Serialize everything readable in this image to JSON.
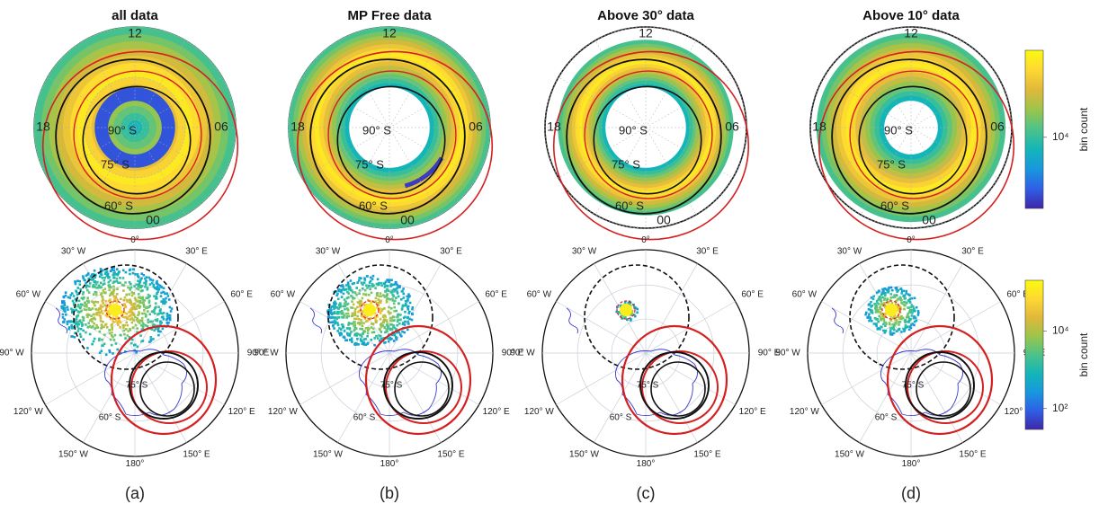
{
  "figure": {
    "panel_letters": [
      "(a)",
      "(b)",
      "(c)",
      "(d)"
    ]
  },
  "chart_data": [
    {
      "type": "heatmap",
      "projection": "polar-mlt",
      "title": "all data",
      "hour_labels": [
        "12",
        "06",
        "00",
        "18"
      ],
      "lat_labels": [
        "90° S",
        "75° S",
        "60° S"
      ],
      "band_lat": [
        60,
        90
      ],
      "inner_blue_ring": true
    },
    {
      "type": "heatmap",
      "projection": "polar-mlt",
      "title": "MP Free data",
      "hour_labels": [
        "12",
        "06",
        "00",
        "18"
      ],
      "lat_labels": [
        "90° S",
        "75° S",
        "60° S"
      ],
      "band_lat": [
        60,
        78
      ],
      "dawn_blue_arc": true
    },
    {
      "type": "heatmap",
      "projection": "polar-mlt",
      "title": "Above 30° data",
      "hour_labels": [
        "12",
        "06",
        "00",
        "18"
      ],
      "lat_labels": [
        "90° S",
        "75° S",
        "60° S"
      ],
      "band_lat": [
        64,
        78
      ]
    },
    {
      "type": "heatmap",
      "projection": "polar-mlt",
      "title": "Above 10° data",
      "hour_labels": [
        "12",
        "06",
        "00",
        "18"
      ],
      "lat_labels": [
        "90° S",
        "75° S",
        "60° S"
      ],
      "band_lat": [
        62,
        82
      ]
    },
    {
      "type": "heatmap",
      "projection": "polar-geographic",
      "longitude_labels": [
        "0°",
        "30° E",
        "60° E",
        "90° E",
        "120° E",
        "150° E",
        "180°",
        "150° W",
        "120° W",
        "90° W",
        "60° W",
        "30° W"
      ],
      "lat_labels": [
        "75° S",
        "60° S"
      ],
      "coverage": "wide"
    },
    {
      "type": "heatmap",
      "projection": "polar-geographic",
      "longitude_labels": [
        "0°",
        "30° E",
        "60° E",
        "90° E",
        "120° E",
        "150° E",
        "180°",
        "150° W",
        "120° W",
        "90° W",
        "60° W",
        "30° W"
      ],
      "lat_labels": [
        "75° S",
        "60° S"
      ],
      "coverage": "medium"
    },
    {
      "type": "heatmap",
      "projection": "polar-geographic",
      "longitude_labels": [
        "0°",
        "30° E",
        "60° E",
        "90° E",
        "120° E",
        "150° E",
        "180°",
        "150° W",
        "120° W",
        "90° W",
        "60° W",
        "30° W"
      ],
      "lat_labels": [
        "75° S",
        "60° S"
      ],
      "coverage": "small"
    },
    {
      "type": "heatmap",
      "projection": "polar-geographic",
      "longitude_labels": [
        "0°",
        "30° E",
        "60° E",
        "90° E",
        "120° E",
        "150° E",
        "180°",
        "150° W",
        "120° W",
        "90° W",
        "60° W",
        "30° W"
      ],
      "lat_labels": [
        "75° S",
        "60° S"
      ],
      "coverage": "blob"
    }
  ],
  "colorbars": [
    {
      "label": "bin count",
      "ticks": [
        "10⁴"
      ],
      "scale": "log"
    },
    {
      "label": "bin count",
      "ticks": [
        "10⁴",
        "10²"
      ],
      "scale": "log"
    }
  ],
  "colors": {
    "red_oval": "#d42020",
    "black_oval": "#111111",
    "coast": "#3a3ad0",
    "grid": "#c9cfd8",
    "colormap": [
      "#3e26a8",
      "#2f5fe6",
      "#1898dd",
      "#14b5b9",
      "#4cc389",
      "#9bc54b",
      "#e0b83a",
      "#fed833",
      "#f9fb0e"
    ]
  }
}
